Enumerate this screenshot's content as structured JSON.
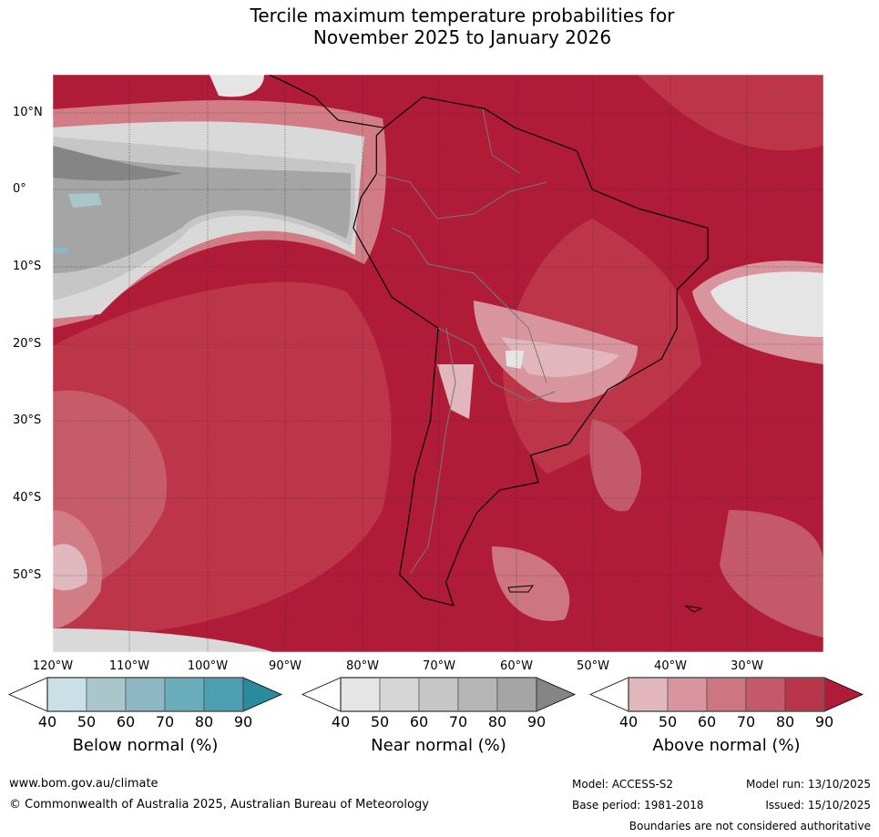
{
  "title": {
    "line1": "Tercile maximum temperature probabilities for",
    "line2": "November 2025 to January 2026"
  },
  "axes": {
    "lat_labels": [
      "10°N",
      "0°",
      "10°S",
      "20°S",
      "30°S",
      "40°S",
      "50°S"
    ],
    "lon_labels": [
      "120°W",
      "110°W",
      "100°W",
      "90°W",
      "80°W",
      "70°W",
      "60°W",
      "50°W",
      "40°W",
      "30°W"
    ]
  },
  "colorbars": [
    {
      "label": "Below normal (%)",
      "ticks": [
        "40",
        "50",
        "60",
        "70",
        "80",
        "90"
      ],
      "colors": [
        "#c9e0e6",
        "#a9c6cb",
        "#8db7c3",
        "#6aaebb",
        "#4aa0b0",
        "#2a8a9e"
      ]
    },
    {
      "label": "Near normal (%)",
      "ticks": [
        "40",
        "50",
        "60",
        "70",
        "80",
        "90"
      ],
      "colors": [
        "#e5e5e5",
        "#d6d6d6",
        "#c6c6c6",
        "#b6b6b6",
        "#a5a5a5",
        "#858585"
      ]
    },
    {
      "label": "Above normal (%)",
      "ticks": [
        "40",
        "50",
        "60",
        "70",
        "80",
        "90"
      ],
      "colors": [
        "#e1b7bd",
        "#d9959e",
        "#cd7580",
        "#c45a69",
        "#b9354a",
        "#b01c38"
      ]
    }
  ],
  "footer": {
    "url": "www.bom.gov.au/climate",
    "copyright": "© Commonwealth of Australia 2025, Australian Bureau of Meteorology",
    "model": "Model: ACCESS-S2",
    "model_run": "Model run: 13/10/2025",
    "base_period": "Base period: 1981-2018",
    "issued": "Issued: 15/10/2025",
    "disclaimer": "Boundaries are not considered authoritative"
  }
}
